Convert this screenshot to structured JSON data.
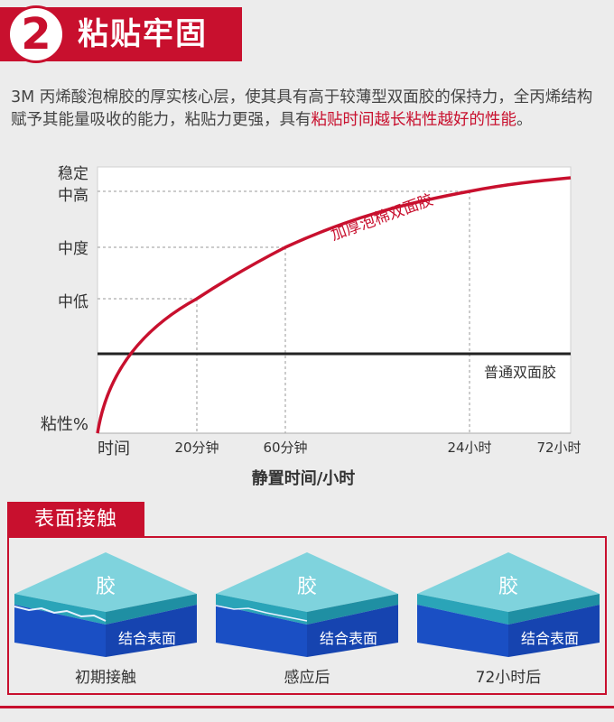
{
  "header": {
    "number": "2",
    "title": "粘贴牢固"
  },
  "description": {
    "part1": "3M 丙烯酸泡棉胶的厚实核心层，使其具有高于较薄型双面胶的保持力，全丙烯结构赋予其能量吸收的能力，粘贴力更强，具有",
    "highlight": "粘贴时间越长粘性越好的性能",
    "part2": "。"
  },
  "chart_data": {
    "type": "line",
    "title": "",
    "xlabel": "静置时间/小时",
    "ylabel": "粘性%",
    "x_ticks": [
      "时间",
      "20分钟",
      "60分钟",
      "24小时",
      "72小时"
    ],
    "y_ticks": [
      "中低",
      "中度",
      "稳定\n中高"
    ],
    "y_top_label_line1": "稳定",
    "y_top_label_line2": "中高",
    "series": [
      {
        "name": "加厚泡棉双面胶",
        "color": "#c8102e",
        "points": [
          {
            "x": "时间",
            "y": "0"
          },
          {
            "x": "20分钟",
            "y": "中低"
          },
          {
            "x": "60分钟",
            "y": "中度"
          },
          {
            "x": "24小时",
            "y": "稳定中高"
          },
          {
            "x": "72小时",
            "y": "稳定中高"
          }
        ]
      },
      {
        "name": "普通双面胶",
        "color": "#222222",
        "points": [
          {
            "x": "时间",
            "y": "constant"
          },
          {
            "x": "72小时",
            "y": "constant"
          }
        ]
      }
    ],
    "grid": true
  },
  "surface_contact": {
    "title": "表面接触",
    "stages": [
      {
        "glue": "胶",
        "surface": "结合表面",
        "label": "初期接触"
      },
      {
        "glue": "胶",
        "surface": "结合表面",
        "label": "感应后"
      },
      {
        "glue": "胶",
        "surface": "结合表面",
        "label": "72小时后"
      }
    ]
  },
  "colors": {
    "accent": "#c8102e",
    "glue_top": "#7fd3dd",
    "glue_side": "#2aa4b8",
    "surface": "#1a4fc4"
  }
}
